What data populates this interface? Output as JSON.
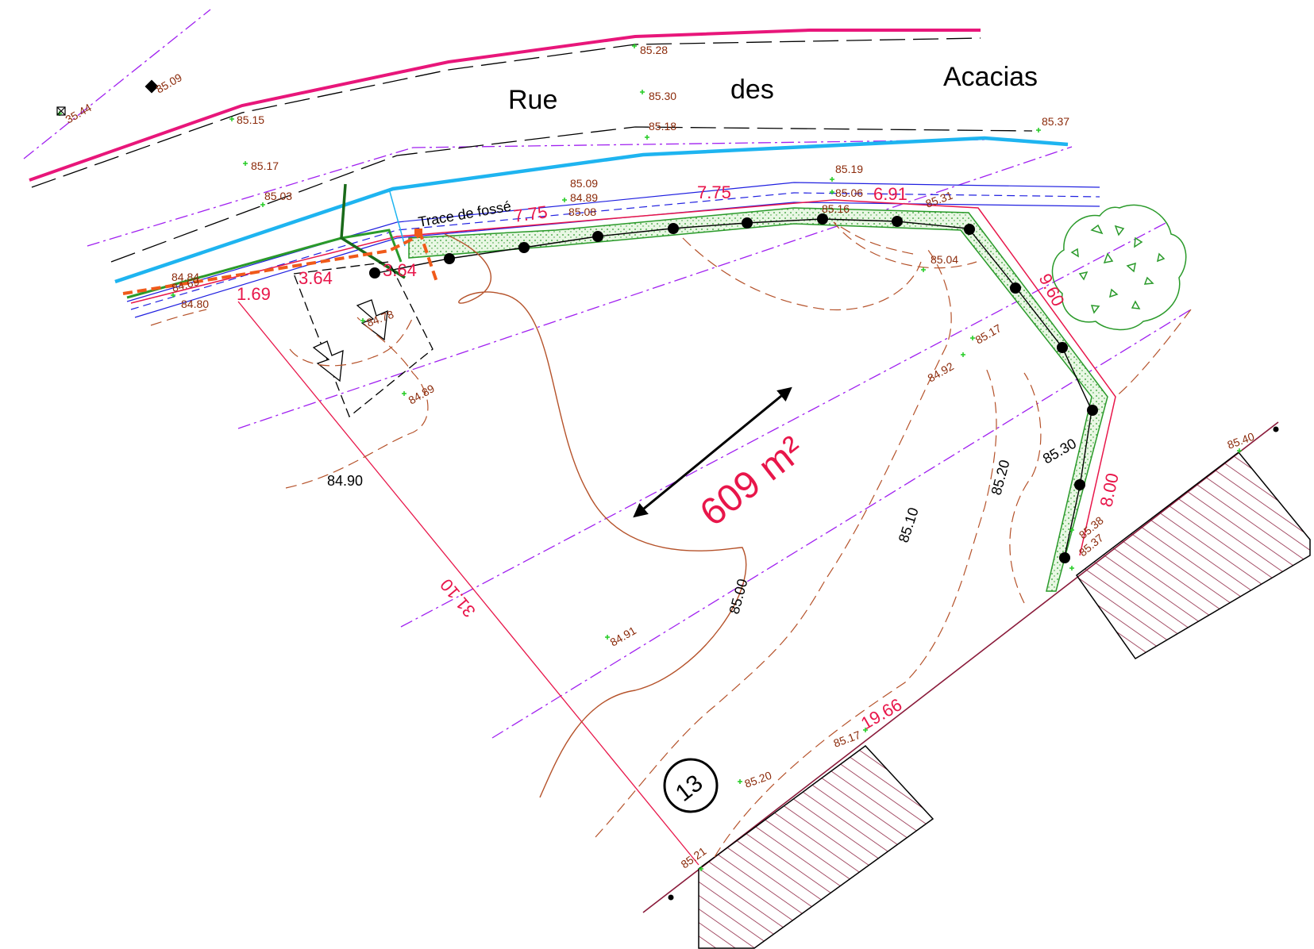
{
  "road": {
    "word1": "Rue",
    "word2": "des",
    "word3": "Acacias"
  },
  "ditch_note": "Trace de fossé",
  "area_label": "609 m²",
  "lot_number": "13",
  "spot_levels": [
    {
      "id": "a",
      "v": "85.28"
    },
    {
      "id": "b",
      "v": "85.09"
    },
    {
      "id": "c",
      "v": "35.44"
    },
    {
      "id": "d",
      "v": "85.15"
    },
    {
      "id": "e",
      "v": "85.30"
    },
    {
      "id": "f",
      "v": "85.18"
    },
    {
      "id": "g",
      "v": "85.37"
    },
    {
      "id": "h",
      "v": "85.17"
    },
    {
      "id": "i",
      "v": "85.19"
    },
    {
      "id": "j",
      "v": "85.03"
    },
    {
      "id": "k",
      "v": "85.09"
    },
    {
      "id": "l",
      "v": "84.89"
    },
    {
      "id": "m",
      "v": "85.08"
    },
    {
      "id": "n",
      "v": "85.06"
    },
    {
      "id": "o",
      "v": "85.16"
    },
    {
      "id": "p",
      "v": "85.31"
    },
    {
      "id": "q",
      "v": "84.84"
    },
    {
      "id": "r",
      "v": "84.69"
    },
    {
      "id": "s",
      "v": "84.80"
    },
    {
      "id": "t",
      "v": "85.04"
    },
    {
      "id": "u",
      "v": "84.78"
    },
    {
      "id": "v",
      "v": "85.17"
    },
    {
      "id": "w",
      "v": "84.92"
    },
    {
      "id": "x",
      "v": "84.89"
    },
    {
      "id": "y",
      "v": "85.40"
    },
    {
      "id": "z",
      "v": "85.38"
    },
    {
      "id": "aa",
      "v": "85.37"
    },
    {
      "id": "ab",
      "v": "84.91"
    },
    {
      "id": "ac",
      "v": "85.17"
    },
    {
      "id": "ad",
      "v": "85.20"
    },
    {
      "id": "ae",
      "v": "85.21"
    }
  ],
  "dimensions": [
    "7.75",
    "7.75",
    "6.91",
    "9.60",
    "8.00",
    "1.69",
    "3.64",
    "3.64",
    "31.10",
    "19.66"
  ],
  "contours": [
    "84.90",
    "85.00",
    "85.10",
    "85.20",
    "85.30"
  ],
  "colors": {
    "boundary_red": "#E8164A",
    "road_magenta": "#E8167A",
    "ditch_cyan": "#1EB4F0",
    "contour_brown": "#B5522A",
    "hedge_green": "#2A9A2A",
    "hatch": "#8A1A3A",
    "axis_purple": "#A020F0",
    "blue_line": "#2020E0"
  }
}
